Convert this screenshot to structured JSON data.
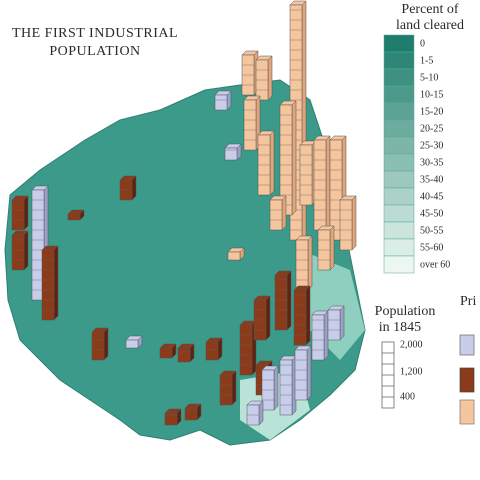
{
  "title": [
    "THE FIRST INDUSTRIAL",
    "POPULATION"
  ],
  "land_legend": {
    "title": [
      "Percent of",
      "land cleared"
    ],
    "classes": [
      "0",
      "1-5",
      "5-10",
      "10-15",
      "15-20",
      "20-25",
      "25-30",
      "30-35",
      "35-40",
      "40-45",
      "45-50",
      "50-55",
      "55-60",
      "over 60"
    ]
  },
  "population_legend": {
    "title": [
      "Population",
      "in 1845"
    ],
    "ticks": [
      "2,000",
      "1,200",
      "400"
    ]
  },
  "type_legend": {
    "title": "Pri"
  }
}
